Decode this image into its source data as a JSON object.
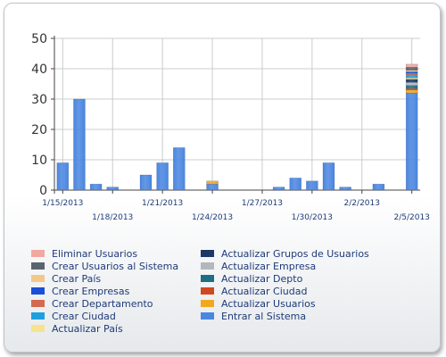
{
  "chart_data": {
    "type": "bar",
    "stacked": true,
    "ylim": [
      0,
      50
    ],
    "y_ticks": [
      "0",
      "10",
      "20",
      "30",
      "40",
      "50"
    ],
    "x_labels": [
      {
        "text": "1/15/2013",
        "at": 0
      },
      {
        "text": "1/18/2013",
        "at": 3
      },
      {
        "text": "1/21/2013",
        "at": 6
      },
      {
        "text": "1/24/2013",
        "at": 9
      },
      {
        "text": "1/27/2013",
        "at": 12
      },
      {
        "text": "1/30/2013",
        "at": 15
      },
      {
        "text": "2/2/2013",
        "at": 18
      },
      {
        "text": "2/5/2013",
        "at": 21
      }
    ],
    "categories": [
      "1/15/2013",
      "1/16/2013",
      "1/17/2013",
      "1/18/2013",
      "1/19/2013",
      "1/20/2013",
      "1/21/2013",
      "1/22/2013",
      "1/23/2013",
      "1/24/2013",
      "1/25/2013",
      "1/26/2013",
      "1/27/2013",
      "1/28/2013",
      "1/29/2013",
      "1/30/2013",
      "1/31/2013",
      "2/1/2013",
      "2/2/2013",
      "2/3/2013",
      "2/4/2013",
      "2/5/2013"
    ],
    "grid": true,
    "legend_position": "bottom",
    "series": [
      {
        "name": "Eliminar Usuarios",
        "color": "#f0a8a0",
        "values": [
          0,
          0,
          0,
          0,
          0,
          0,
          0,
          0,
          0,
          0,
          0,
          0,
          0,
          0,
          0,
          0,
          0,
          0,
          0,
          0,
          0,
          1
        ]
      },
      {
        "name": "Crear Usuarios al Sistema",
        "color": "#5a6470",
        "values": [
          0,
          0,
          0,
          0,
          0,
          0,
          0,
          0,
          0,
          0,
          0,
          0,
          0,
          0,
          0,
          0,
          0,
          0,
          0,
          0,
          0,
          1
        ]
      },
      {
        "name": "Crear País",
        "color": "#f2c88a",
        "values": [
          0,
          0,
          0,
          0,
          0,
          0,
          0,
          0,
          0,
          0,
          0,
          0,
          0,
          0,
          0,
          0,
          0,
          0,
          0,
          0,
          0,
          0.5
        ]
      },
      {
        "name": "Crear Empresas",
        "color": "#1a4fd8",
        "values": [
          0,
          0,
          0,
          0,
          0,
          0,
          0,
          0,
          0,
          0,
          0,
          0,
          0,
          0,
          0,
          0,
          0,
          0,
          0,
          0,
          0,
          0.5
        ]
      },
      {
        "name": "Crear Departamento",
        "color": "#d46a4e",
        "values": [
          0,
          0,
          0,
          0,
          0,
          0,
          0,
          0,
          0,
          0,
          0,
          0,
          0,
          0,
          0,
          0,
          0,
          0,
          0,
          0,
          0,
          0.5
        ]
      },
      {
        "name": "Crear Ciudad",
        "color": "#1ea0dc",
        "values": [
          0,
          0,
          0,
          0,
          0,
          0,
          0,
          0,
          0,
          0,
          0,
          0,
          0,
          0,
          0,
          0,
          0,
          0,
          0,
          0,
          0,
          1
        ]
      },
      {
        "name": "Actualizar País",
        "color": "#f8e28c",
        "values": [
          0,
          0,
          0,
          0,
          0,
          0,
          0,
          0,
          0,
          0,
          0,
          0,
          0,
          0,
          0,
          0,
          0,
          0,
          0,
          0,
          0,
          0.5
        ]
      },
      {
        "name": "Actualizar Grupos de Usuarios",
        "color": "#1c3866",
        "values": [
          0,
          0,
          0,
          0,
          0,
          0,
          0,
          0,
          0,
          0,
          0,
          0,
          0,
          0,
          0,
          0,
          0,
          0,
          0,
          0,
          0,
          1
        ]
      },
      {
        "name": "Actualizar Empresa",
        "color": "#b4b8bc",
        "values": [
          0,
          0,
          0,
          0,
          0,
          0,
          0,
          0,
          0,
          0,
          0,
          0,
          0,
          0,
          0,
          0,
          0,
          0,
          0,
          0,
          0,
          1
        ]
      },
      {
        "name": "Actualizar Depto",
        "color": "#1e6f82",
        "values": [
          0,
          0,
          0,
          0,
          0,
          0,
          0,
          0,
          0,
          0,
          0,
          0,
          0,
          0,
          0,
          0,
          0,
          0,
          0,
          0,
          0,
          1
        ]
      },
      {
        "name": "Actualizar Ciudad",
        "color": "#d2481e",
        "values": [
          0,
          0,
          0,
          0,
          0,
          0,
          0,
          0,
          0,
          0,
          0,
          0,
          0,
          0,
          0,
          0,
          0,
          0,
          0,
          0,
          0,
          0.5
        ]
      },
      {
        "name": "Actualizar Usuarios",
        "color": "#f2a81e",
        "values": [
          0,
          0,
          0,
          0,
          0,
          0,
          0,
          0,
          0,
          1,
          0,
          0,
          0,
          0,
          0,
          0,
          0,
          0,
          0,
          0,
          0,
          1
        ]
      },
      {
        "name": "Entrar al Sistema",
        "color": "#4a86e0",
        "values": [
          9,
          30,
          2,
          1,
          0,
          5,
          9,
          14,
          0,
          2,
          0,
          0,
          0,
          1,
          4,
          3,
          9,
          1,
          0,
          2,
          0,
          32
        ]
      }
    ]
  }
}
